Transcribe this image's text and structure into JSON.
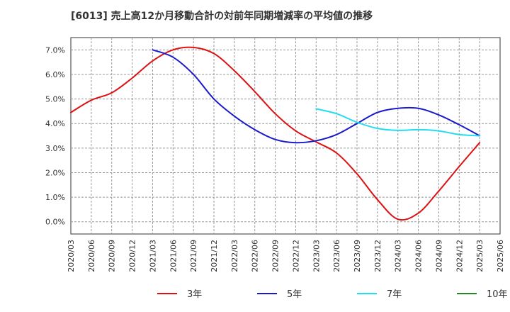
{
  "chart_data": {
    "type": "line",
    "title": "[6013]  売上高12か月移動合計の対前年同期増減率の平均値の推移",
    "xlabel": "",
    "ylabel": "",
    "ylim": [
      -0.5,
      7.5
    ],
    "yticks": [
      "7.0%",
      "6.0%",
      "5.0%",
      "4.0%",
      "3.0%",
      "2.0%",
      "1.0%",
      "0.0%"
    ],
    "ytick_values": [
      7,
      6,
      5,
      4,
      3,
      2,
      1,
      0
    ],
    "xticks": [
      "2020/03",
      "2020/06",
      "2020/09",
      "2020/12",
      "2021/03",
      "2021/06",
      "2021/09",
      "2021/12",
      "2022/03",
      "2022/06",
      "2022/09",
      "2022/12",
      "2023/03",
      "2023/06",
      "2023/09",
      "2023/12",
      "2024/03",
      "2024/06",
      "2024/09",
      "2024/12",
      "2025/03",
      "2025/06"
    ],
    "grid": true,
    "legend_position": "bottom",
    "series": [
      {
        "name": "3年",
        "color": "#dd1111",
        "x": [
          "2020/03",
          "2020/06",
          "2020/09",
          "2020/12",
          "2021/03",
          "2021/06",
          "2021/09",
          "2021/12",
          "2022/03",
          "2022/06",
          "2022/09",
          "2022/12",
          "2023/03",
          "2023/06",
          "2023/09",
          "2023/12",
          "2024/03",
          "2024/06",
          "2024/09",
          "2024/12",
          "2025/03"
        ],
        "values": [
          4.45,
          4.95,
          5.25,
          5.85,
          6.55,
          7.0,
          7.1,
          6.85,
          6.15,
          5.3,
          4.4,
          3.7,
          3.25,
          2.8,
          1.95,
          0.9,
          0.1,
          0.35,
          1.25,
          2.25,
          3.22
        ]
      },
      {
        "name": "5年",
        "color": "#1a1acc",
        "x": [
          "2021/03",
          "2021/06",
          "2021/09",
          "2021/12",
          "2022/03",
          "2022/06",
          "2022/09",
          "2022/12",
          "2023/03",
          "2023/06",
          "2023/09",
          "2023/12",
          "2024/03",
          "2024/06",
          "2024/09",
          "2024/12",
          "2025/03"
        ],
        "values": [
          7.0,
          6.7,
          6.0,
          5.0,
          4.3,
          3.75,
          3.35,
          3.22,
          3.3,
          3.55,
          4.0,
          4.45,
          4.62,
          4.62,
          4.35,
          3.95,
          3.5
        ]
      },
      {
        "name": "7年",
        "color": "#22ddee",
        "x": [
          "2023/03",
          "2023/06",
          "2023/09",
          "2023/12",
          "2024/03",
          "2024/06",
          "2024/09",
          "2024/12",
          "2025/03"
        ],
        "values": [
          4.6,
          4.4,
          4.05,
          3.8,
          3.72,
          3.75,
          3.7,
          3.55,
          3.5
        ]
      },
      {
        "name": "10年",
        "color": "#228822",
        "x": [],
        "values": []
      }
    ]
  }
}
